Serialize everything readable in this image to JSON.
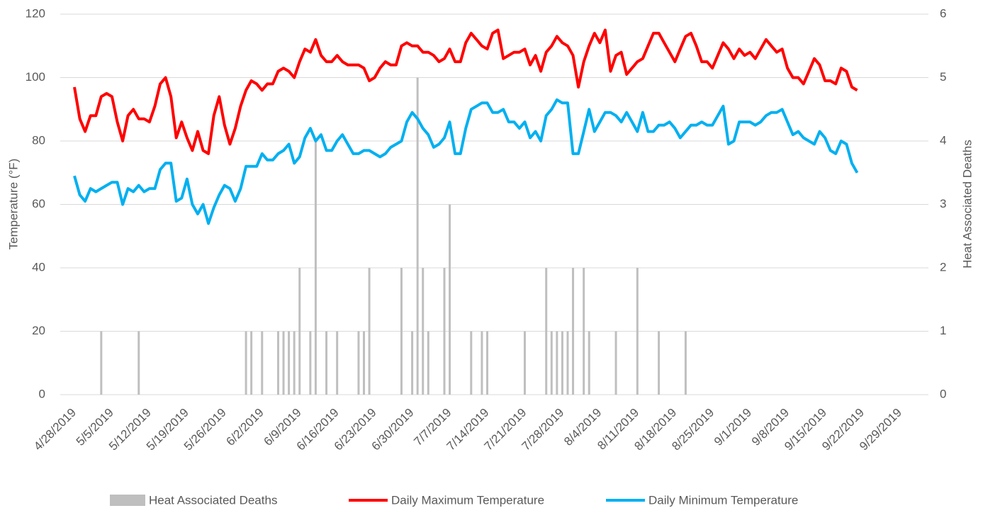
{
  "chart_data": {
    "type": "combo",
    "y_label": "Temperature (°F)",
    "y2_label": "Heat Associated Deaths",
    "x": [
      "4/28/2019",
      "4/29/2019",
      "4/30/2019",
      "5/1/2019",
      "5/2/2019",
      "5/3/2019",
      "5/4/2019",
      "5/5/2019",
      "5/6/2019",
      "5/7/2019",
      "5/8/2019",
      "5/9/2019",
      "5/10/2019",
      "5/11/2019",
      "5/12/2019",
      "5/13/2019",
      "5/14/2019",
      "5/15/2019",
      "5/16/2019",
      "5/17/2019",
      "5/18/2019",
      "5/19/2019",
      "5/20/2019",
      "5/21/2019",
      "5/22/2019",
      "5/23/2019",
      "5/24/2019",
      "5/25/2019",
      "5/26/2019",
      "5/27/2019",
      "5/28/2019",
      "5/29/2019",
      "5/30/2019",
      "5/31/2019",
      "6/1/2019",
      "6/2/2019",
      "6/3/2019",
      "6/4/2019",
      "6/5/2019",
      "6/6/2019",
      "6/7/2019",
      "6/8/2019",
      "6/9/2019",
      "6/10/2019",
      "6/11/2019",
      "6/12/2019",
      "6/13/2019",
      "6/14/2019",
      "6/15/2019",
      "6/16/2019",
      "6/17/2019",
      "6/18/2019",
      "6/19/2019",
      "6/20/2019",
      "6/21/2019",
      "6/22/2019",
      "6/23/2019",
      "6/24/2019",
      "6/25/2019",
      "6/26/2019",
      "6/27/2019",
      "6/28/2019",
      "6/29/2019",
      "6/30/2019",
      "7/1/2019",
      "7/2/2019",
      "7/3/2019",
      "7/4/2019",
      "7/5/2019",
      "7/6/2019",
      "7/7/2019",
      "7/8/2019",
      "7/9/2019",
      "7/10/2019",
      "7/11/2019",
      "7/12/2019",
      "7/13/2019",
      "7/14/2019",
      "7/15/2019",
      "7/16/2019",
      "7/17/2019",
      "7/18/2019",
      "7/19/2019",
      "7/20/2019",
      "7/21/2019",
      "7/22/2019",
      "7/23/2019",
      "7/24/2019",
      "7/25/2019",
      "7/26/2019",
      "7/27/2019",
      "7/28/2019",
      "7/29/2019",
      "7/30/2019",
      "7/31/2019",
      "8/1/2019",
      "8/2/2019",
      "8/3/2019",
      "8/4/2019",
      "8/5/2019",
      "8/6/2019",
      "8/7/2019",
      "8/8/2019",
      "8/9/2019",
      "8/10/2019",
      "8/11/2019",
      "8/12/2019",
      "8/13/2019",
      "8/14/2019",
      "8/15/2019",
      "8/16/2019",
      "8/17/2019",
      "8/18/2019",
      "8/19/2019",
      "8/20/2019",
      "8/21/2019",
      "8/22/2019",
      "8/23/2019",
      "8/24/2019",
      "8/25/2019",
      "8/26/2019",
      "8/27/2019",
      "8/28/2019",
      "8/29/2019",
      "8/30/2019",
      "8/31/2019",
      "9/1/2019",
      "9/2/2019",
      "9/3/2019",
      "9/4/2019",
      "9/5/2019",
      "9/6/2019",
      "9/7/2019",
      "9/8/2019",
      "9/9/2019",
      "9/10/2019",
      "9/11/2019",
      "9/12/2019",
      "9/13/2019",
      "9/14/2019",
      "9/15/2019",
      "9/16/2019",
      "9/17/2019",
      "9/18/2019",
      "9/19/2019",
      "9/20/2019",
      "9/21/2019"
    ],
    "series": [
      {
        "name": "Heat Associated Deaths",
        "type": "bar",
        "axis": "y2",
        "color": "#bfbfbf",
        "values": [
          0,
          0,
          0,
          0,
          0,
          1,
          0,
          0,
          0,
          0,
          0,
          0,
          1,
          0,
          0,
          0,
          0,
          0,
          0,
          0,
          0,
          0,
          0,
          0,
          0,
          0,
          0,
          0,
          0,
          0,
          0,
          0,
          1,
          1,
          0,
          1,
          0,
          0,
          1,
          1,
          1,
          1,
          2,
          0,
          1,
          4,
          0,
          1,
          0,
          1,
          0,
          0,
          0,
          1,
          1,
          2,
          0,
          0,
          0,
          0,
          0,
          2,
          0,
          1,
          5,
          2,
          1,
          0,
          0,
          2,
          3,
          0,
          0,
          0,
          1,
          0,
          1,
          1,
          0,
          0,
          0,
          0,
          0,
          0,
          1,
          0,
          0,
          0,
          2,
          1,
          1,
          1,
          1,
          2,
          0,
          2,
          1,
          0,
          0,
          0,
          0,
          1,
          0,
          0,
          0,
          2,
          0,
          0,
          0,
          1,
          0,
          0,
          0,
          0,
          1,
          0,
          0,
          0,
          0,
          0,
          0,
          0,
          0,
          0,
          0,
          0,
          0,
          0,
          0,
          0,
          0,
          0,
          0,
          0,
          0,
          0,
          0,
          0,
          0,
          0,
          0,
          0,
          0,
          0,
          0,
          0,
          0
        ]
      },
      {
        "name": "Daily Maximum Temperature",
        "type": "line",
        "color": "#ff0000",
        "values": [
          97,
          87,
          83,
          88,
          88,
          94,
          95,
          94,
          86,
          80,
          88,
          90,
          87,
          87,
          86,
          91,
          98,
          100,
          94,
          81,
          86,
          81,
          77,
          83,
          77,
          76,
          88,
          94,
          85,
          79,
          84,
          91,
          96,
          99,
          98,
          96,
          98,
          98,
          102,
          103,
          102,
          100,
          105,
          109,
          108,
          112,
          107,
          105,
          105,
          107,
          105,
          104,
          104,
          104,
          103,
          99,
          100,
          103,
          105,
          104,
          104,
          110,
          111,
          110,
          110,
          108,
          108,
          107,
          105,
          106,
          109,
          105,
          105,
          111,
          114,
          112,
          110,
          109,
          114,
          115,
          106,
          107,
          108,
          108,
          109,
          104,
          107,
          102,
          108,
          110,
          113,
          111,
          110,
          107,
          97,
          105,
          110,
          114,
          111,
          115,
          102,
          107,
          108,
          101,
          103,
          105,
          106,
          110,
          114,
          114,
          111,
          108,
          105,
          109,
          113,
          114,
          110,
          105,
          105,
          103,
          107,
          111,
          109,
          106,
          109,
          107,
          108,
          106,
          109,
          112,
          110,
          108,
          109,
          103,
          100,
          100,
          98,
          102,
          106,
          104,
          99,
          99,
          98,
          103,
          102,
          97,
          96
        ]
      },
      {
        "name": "Daily Minimum Temperature",
        "type": "line",
        "color": "#00b0f0",
        "values": [
          69,
          63,
          61,
          65,
          64,
          65,
          66,
          67,
          67,
          60,
          65,
          64,
          66,
          64,
          65,
          65,
          71,
          73,
          73,
          61,
          62,
          68,
          60,
          57,
          60,
          54,
          59,
          63,
          66,
          65,
          61,
          65,
          72,
          72,
          72,
          76,
          74,
          74,
          76,
          77,
          79,
          73,
          75,
          81,
          84,
          80,
          82,
          77,
          77,
          80,
          82,
          79,
          76,
          76,
          77,
          77,
          76,
          75,
          76,
          78,
          79,
          80,
          86,
          89,
          87,
          84,
          82,
          78,
          79,
          81,
          86,
          76,
          76,
          84,
          90,
          91,
          92,
          92,
          89,
          89,
          90,
          86,
          86,
          84,
          86,
          81,
          83,
          80,
          88,
          90,
          93,
          92,
          92,
          76,
          76,
          83,
          90,
          83,
          86,
          89,
          89,
          88,
          86,
          89,
          86,
          83,
          89,
          83,
          83,
          85,
          85,
          86,
          84,
          81,
          83,
          85,
          85,
          86,
          85,
          85,
          88,
          91,
          79,
          80,
          86,
          86,
          86,
          85,
          86,
          88,
          89,
          89,
          90,
          86,
          82,
          83,
          81,
          80,
          79,
          83,
          81,
          77,
          76,
          80,
          79,
          73,
          70
        ]
      }
    ],
    "xlim": [
      "4/28/2019",
      "9/29/2019"
    ],
    "xticks": [
      "4/28/2019",
      "5/5/2019",
      "5/12/2019",
      "5/19/2019",
      "5/26/2019",
      "6/2/2019",
      "6/9/2019",
      "6/16/2019",
      "6/23/2019",
      "6/30/2019",
      "7/7/2019",
      "7/14/2019",
      "7/21/2019",
      "7/28/2019",
      "8/4/2019",
      "8/11/2019",
      "8/18/2019",
      "8/25/2019",
      "9/1/2019",
      "9/8/2019",
      "9/15/2019",
      "9/22/2019",
      "9/29/2019"
    ],
    "ylim": [
      0,
      120
    ],
    "yticks": [
      0,
      20,
      40,
      60,
      80,
      100,
      120
    ],
    "y2lim": [
      0,
      6
    ],
    "y2ticks": [
      0,
      1,
      2,
      3,
      4,
      5,
      6
    ],
    "grid": true,
    "legend": "bottom"
  }
}
